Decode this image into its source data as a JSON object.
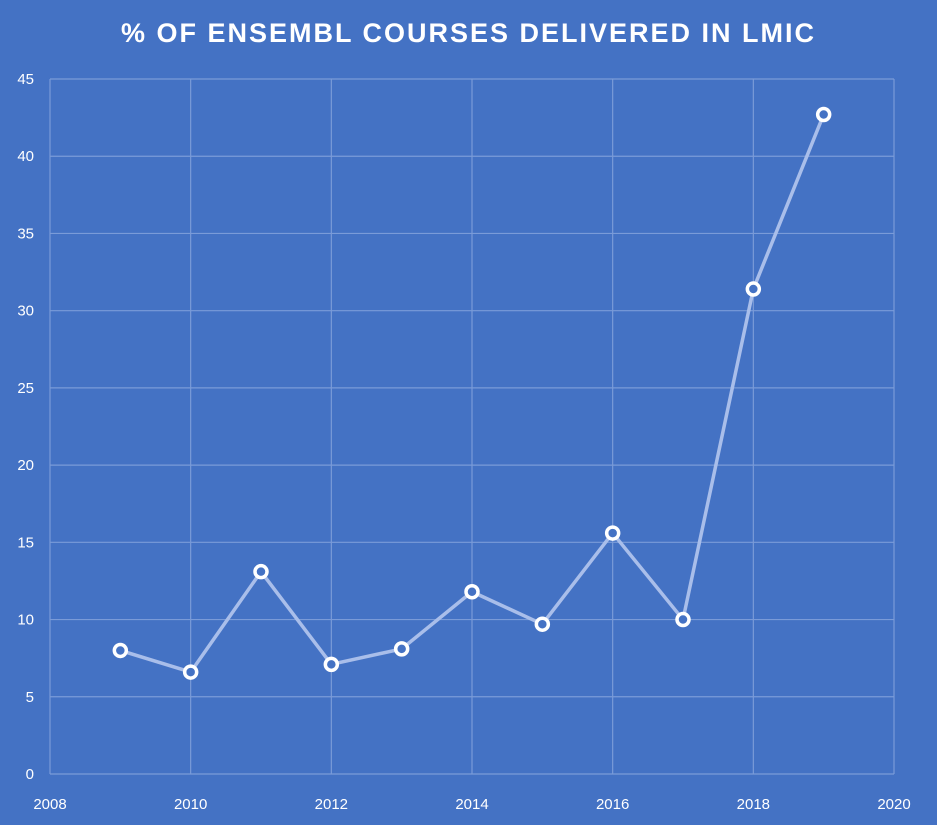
{
  "chart_data": {
    "type": "scatter",
    "title": "% OF ENSEMBL COURSES DELIVERED IN LMIC",
    "xlabel": "",
    "ylabel": "",
    "xlim": [
      2008,
      2020
    ],
    "ylim": [
      0,
      45
    ],
    "xticks": [
      "2008",
      "2010",
      "2012",
      "2014",
      "2016",
      "2018",
      "2020"
    ],
    "yticks": [
      "0",
      "5",
      "10",
      "15",
      "20",
      "25",
      "30",
      "35",
      "40",
      "45"
    ],
    "grid": true,
    "legend": "none",
    "series": [
      {
        "x": [
          2009,
          2010,
          2011,
          2012,
          2013,
          2014,
          2015,
          2016,
          2017,
          2018,
          2019
        ],
        "y": [
          8.0,
          6.6,
          13.1,
          7.1,
          8.1,
          11.8,
          9.7,
          15.6,
          10.0,
          31.4,
          42.7
        ]
      }
    ],
    "colors": {
      "background": "#4472C4",
      "grid": "#7A9BD8",
      "line": "#A9BEEA",
      "marker_fill": "#4472C4",
      "marker_stroke": "#FFFFFF",
      "text": "#FFFFFF"
    }
  }
}
